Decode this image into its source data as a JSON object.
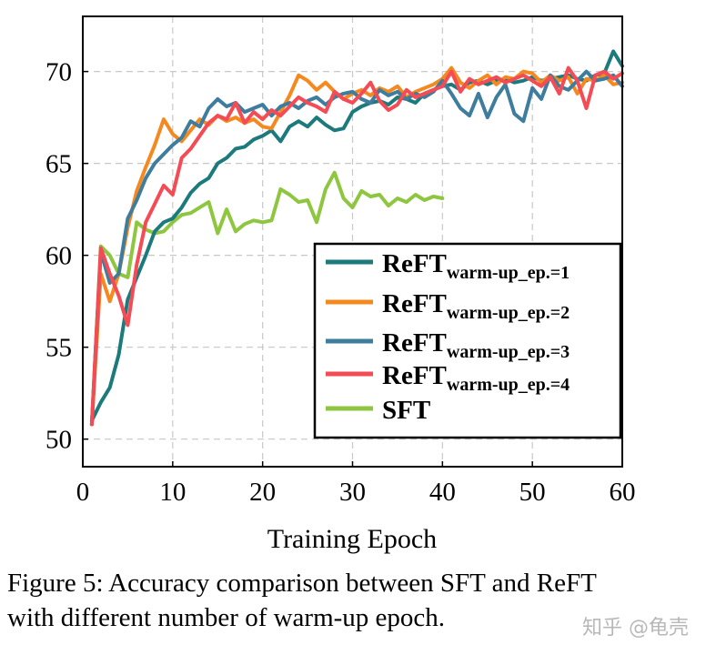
{
  "chart_data": {
    "type": "line",
    "title": "",
    "xlabel": "Training Epoch",
    "ylabel": "",
    "xlim": [
      0,
      60
    ],
    "ylim": [
      48.5,
      73
    ],
    "xticks": [
      0,
      10,
      20,
      30,
      40,
      50,
      60
    ],
    "yticks": [
      50,
      55,
      60,
      65,
      70
    ],
    "grid": true,
    "legend_position": "center-right",
    "series": [
      {
        "name": "ReFT",
        "sub": "warm-up_ep.=1",
        "color": "#1c7a7c",
        "x": [
          1,
          2,
          3,
          4,
          5,
          6,
          7,
          8,
          9,
          10,
          11,
          12,
          13,
          14,
          15,
          16,
          17,
          18,
          19,
          20,
          21,
          22,
          23,
          24,
          25,
          26,
          27,
          28,
          29,
          30,
          31,
          32,
          33,
          34,
          35,
          36,
          37,
          38,
          39,
          40,
          41,
          42,
          43,
          44,
          45,
          46,
          47,
          48,
          49,
          50,
          51,
          52,
          53,
          54,
          55,
          56,
          57,
          58,
          59,
          60
        ],
        "y": [
          51.0,
          52.0,
          52.8,
          54.6,
          57.6,
          58.8,
          60.0,
          61.3,
          61.8,
          62.0,
          62.6,
          63.4,
          63.9,
          64.2,
          65.0,
          65.3,
          65.8,
          65.9,
          66.3,
          66.5,
          66.8,
          66.2,
          67.0,
          67.3,
          67.0,
          67.5,
          67.1,
          66.8,
          66.9,
          67.8,
          68.1,
          68.3,
          68.4,
          68.2,
          68.6,
          68.5,
          68.3,
          68.8,
          69.0,
          69.2,
          69.3,
          69.0,
          69.4,
          69.5,
          69.3,
          69.5,
          69.6,
          69.4,
          69.5,
          69.7,
          69.5,
          69.6,
          69.7,
          69.8,
          69.6,
          69.5,
          69.8,
          69.9,
          71.1,
          70.3
        ]
      },
      {
        "name": "ReFT",
        "sub": "warm-up_ep.=2",
        "color": "#f5891f",
        "x": [
          1,
          2,
          3,
          4,
          5,
          6,
          7,
          8,
          9,
          10,
          11,
          12,
          13,
          14,
          15,
          16,
          17,
          18,
          19,
          20,
          21,
          22,
          23,
          24,
          25,
          26,
          27,
          28,
          29,
          30,
          31,
          32,
          33,
          34,
          35,
          36,
          37,
          38,
          39,
          40,
          41,
          42,
          43,
          44,
          45,
          46,
          47,
          48,
          49,
          50,
          51,
          52,
          53,
          54,
          55,
          56,
          57,
          58,
          59,
          60
        ],
        "y": [
          50.8,
          59.0,
          57.5,
          59.0,
          61.5,
          63.5,
          64.8,
          66.0,
          67.4,
          66.6,
          66.2,
          66.8,
          67.4,
          67.1,
          67.6,
          67.3,
          67.5,
          67.2,
          67.4,
          67.0,
          66.9,
          67.8,
          68.7,
          69.8,
          69.5,
          69.0,
          69.4,
          68.9,
          68.5,
          68.8,
          69.0,
          68.7,
          69.1,
          68.9,
          69.2,
          68.6,
          68.9,
          69.1,
          69.3,
          69.6,
          70.2,
          69.4,
          69.1,
          69.5,
          69.8,
          69.3,
          69.7,
          69.6,
          70.0,
          69.9,
          69.4,
          69.8,
          69.5,
          69.7,
          68.8,
          69.6,
          69.5,
          69.8,
          69.3,
          69.4
        ]
      },
      {
        "name": "ReFT",
        "sub": "warm-up_ep.=3",
        "color": "#3e7d9e",
        "x": [
          1,
          2,
          3,
          4,
          5,
          6,
          7,
          8,
          9,
          10,
          11,
          12,
          13,
          14,
          15,
          16,
          17,
          18,
          19,
          20,
          21,
          22,
          23,
          24,
          25,
          26,
          27,
          28,
          29,
          30,
          31,
          32,
          33,
          34,
          35,
          36,
          37,
          38,
          39,
          40,
          41,
          42,
          43,
          44,
          45,
          46,
          47,
          48,
          49,
          50,
          51,
          52,
          53,
          54,
          55,
          56,
          57,
          58,
          59,
          60
        ],
        "y": [
          50.8,
          60.2,
          58.5,
          59.0,
          62.0,
          63.0,
          64.2,
          65.0,
          65.5,
          66.0,
          66.4,
          67.3,
          67.0,
          68.0,
          68.5,
          68.1,
          68.3,
          67.8,
          68.0,
          68.2,
          67.6,
          68.1,
          68.3,
          68.0,
          68.4,
          68.6,
          68.2,
          68.6,
          68.8,
          68.9,
          68.5,
          68.3,
          69.0,
          68.7,
          68.9,
          68.5,
          68.8,
          68.6,
          68.9,
          69.5,
          68.8,
          68.0,
          67.6,
          68.8,
          67.5,
          68.6,
          69.3,
          67.7,
          67.3,
          69.1,
          68.5,
          69.8,
          69.2,
          69.0,
          69.5,
          70.0,
          69.5,
          69.6,
          69.8,
          69.2
        ]
      },
      {
        "name": "ReFT",
        "sub": "warm-up_ep.=4",
        "color": "#f44b54",
        "x": [
          1,
          2,
          3,
          4,
          5,
          6,
          7,
          8,
          9,
          10,
          11,
          12,
          13,
          14,
          15,
          16,
          17,
          18,
          19,
          20,
          21,
          22,
          23,
          24,
          25,
          26,
          27,
          28,
          29,
          30,
          31,
          32,
          33,
          34,
          35,
          36,
          37,
          38,
          39,
          40,
          41,
          42,
          43,
          44,
          45,
          46,
          47,
          48,
          49,
          50,
          51,
          52,
          53,
          54,
          55,
          56,
          57,
          58,
          59,
          60
        ],
        "y": [
          50.8,
          60.4,
          59.0,
          57.8,
          56.2,
          59.5,
          61.8,
          62.8,
          63.8,
          63.3,
          65.3,
          65.8,
          66.5,
          67.2,
          67.6,
          67.4,
          68.3,
          67.2,
          67.8,
          67.4,
          67.9,
          67.6,
          68.1,
          68.6,
          68.3,
          68.1,
          67.8,
          68.9,
          68.5,
          68.3,
          68.8,
          69.4,
          68.4,
          67.9,
          68.2,
          69.0,
          68.6,
          68.8,
          69.0,
          69.2,
          70.0,
          68.9,
          69.6,
          69.3,
          69.5,
          69.7,
          69.4,
          69.6,
          69.8,
          69.5,
          69.2,
          69.7,
          68.8,
          70.2,
          69.5,
          68.0,
          69.8,
          70.0,
          69.6,
          69.9
        ]
      },
      {
        "name": "SFT",
        "sub": "",
        "color": "#8ec63f",
        "x": [
          1,
          2,
          3,
          4,
          5,
          6,
          7,
          8,
          9,
          10,
          11,
          12,
          13,
          14,
          15,
          16,
          17,
          18,
          19,
          20,
          21,
          22,
          23,
          24,
          25,
          26,
          27,
          28,
          29,
          30,
          31,
          32,
          33,
          34,
          35,
          36,
          37,
          38,
          39,
          40
        ],
        "y": [
          50.8,
          60.5,
          60.0,
          59.0,
          58.8,
          61.8,
          61.4,
          61.2,
          61.3,
          61.8,
          62.2,
          62.3,
          62.6,
          62.9,
          61.2,
          62.5,
          61.3,
          61.7,
          61.9,
          61.8,
          61.9,
          63.6,
          63.3,
          62.9,
          63.0,
          61.8,
          63.6,
          64.5,
          63.1,
          62.6,
          63.5,
          63.2,
          63.3,
          62.7,
          63.1,
          62.9,
          63.3,
          63.0,
          63.2,
          63.1
        ]
      }
    ]
  },
  "caption": {
    "line1": "Figure 5: Accuracy comparison between SFT and ReFT",
    "line2": "with different number of warm-up epoch."
  },
  "watermark": "知乎 @龟壳"
}
